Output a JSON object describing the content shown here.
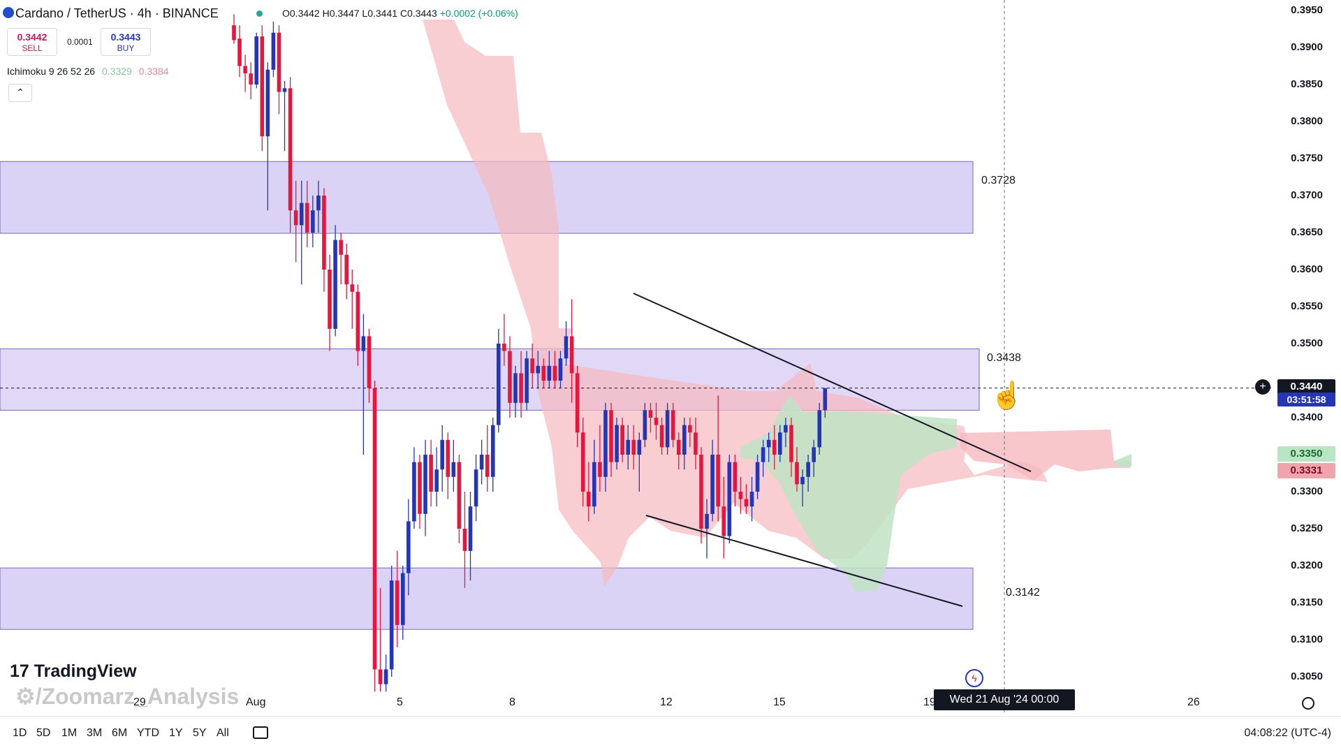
{
  "header": {
    "title": "Cardano / TetherUS · 4h · BINANCE",
    "ohlc": "O0.3442 H0.3447 L0.3441 C0.3443",
    "change": "+0.0002 (+0.06%)"
  },
  "trade": {
    "sell_price": "0.3442",
    "sell_label": "SELL",
    "spread": "0.0001",
    "buy_price": "0.3443",
    "buy_label": "BUY"
  },
  "indicator": {
    "name": "Ichimoku 9 26 52 26",
    "value1": "0.3329",
    "value2": "0.3384",
    "collapse_icon": "chevron-up-icon"
  },
  "colors": {
    "bull": "#2436b5",
    "bear": "#e5173f",
    "zone": "#d5cbf3",
    "cloud_bear": "#f6b9bf",
    "cloud_bull": "#bfe3c4"
  },
  "price_axis": {
    "ticks": [
      "0.3950",
      "0.3900",
      "0.3850",
      "0.3800",
      "0.3750",
      "0.3700",
      "0.3650",
      "0.3600",
      "0.3550",
      "0.3500",
      "0.3400",
      "0.3300",
      "0.3250",
      "0.3200",
      "0.3150",
      "0.3100",
      "0.3050"
    ],
    "current_price": "0.3440",
    "countdown": "03:51:58",
    "senkou_a": "0.3350",
    "senkou_b": "0.3331"
  },
  "zones": {
    "upper_label": "0.3728",
    "middle_label": "0.3438",
    "lower_label": "0.3142"
  },
  "time_axis": {
    "ticks": [
      "29",
      "Aug",
      "5",
      "8",
      "12",
      "15",
      "19",
      "26"
    ],
    "crosshair_label": "Wed 21 Aug '24   00:00"
  },
  "branding": {
    "logo": "TradingView",
    "watermark": "/Zoomarz_Analysis"
  },
  "bottom_bar": {
    "ranges": [
      "1D",
      "5D",
      "1M",
      "3M",
      "6M",
      "YTD",
      "1Y",
      "5Y",
      "All"
    ],
    "clock": "04:08:22 (UTC-4)"
  },
  "chart_data": {
    "type": "candlestick",
    "symbol": "Cardano / TetherUS",
    "interval": "4h",
    "ylim": [
      0.303,
      0.397
    ],
    "candles": [
      [
        0.393,
        0.3945,
        0.3905,
        0.391
      ],
      [
        0.3912,
        0.393,
        0.386,
        0.3875
      ],
      [
        0.3875,
        0.389,
        0.384,
        0.3865
      ],
      [
        0.3865,
        0.388,
        0.383,
        0.385
      ],
      [
        0.385,
        0.392,
        0.3845,
        0.3915
      ],
      [
        0.3915,
        0.393,
        0.376,
        0.378
      ],
      [
        0.378,
        0.388,
        0.368,
        0.387
      ],
      [
        0.387,
        0.3935,
        0.386,
        0.392
      ],
      [
        0.392,
        0.393,
        0.381,
        0.384
      ],
      [
        0.384,
        0.3855,
        0.376,
        0.3845
      ],
      [
        0.3845,
        0.386,
        0.365,
        0.368
      ],
      [
        0.368,
        0.372,
        0.361,
        0.366
      ],
      [
        0.366,
        0.372,
        0.358,
        0.369
      ],
      [
        0.369,
        0.372,
        0.363,
        0.365
      ],
      [
        0.365,
        0.37,
        0.363,
        0.368
      ],
      [
        0.368,
        0.372,
        0.365,
        0.37
      ],
      [
        0.37,
        0.371,
        0.357,
        0.36
      ],
      [
        0.36,
        0.362,
        0.349,
        0.352
      ],
      [
        0.352,
        0.366,
        0.351,
        0.364
      ],
      [
        0.364,
        0.365,
        0.358,
        0.362
      ],
      [
        0.362,
        0.3635,
        0.356,
        0.358
      ],
      [
        0.358,
        0.36,
        0.352,
        0.357
      ],
      [
        0.357,
        0.358,
        0.347,
        0.349
      ],
      [
        0.349,
        0.354,
        0.335,
        0.351
      ],
      [
        0.351,
        0.352,
        0.342,
        0.344
      ],
      [
        0.344,
        0.345,
        0.303,
        0.306
      ],
      [
        0.306,
        0.317,
        0.303,
        0.304
      ],
      [
        0.304,
        0.308,
        0.303,
        0.306
      ],
      [
        0.306,
        0.32,
        0.305,
        0.318
      ],
      [
        0.318,
        0.322,
        0.309,
        0.312
      ],
      [
        0.312,
        0.32,
        0.31,
        0.319
      ],
      [
        0.319,
        0.329,
        0.316,
        0.326
      ],
      [
        0.326,
        0.336,
        0.325,
        0.334
      ],
      [
        0.334,
        0.335,
        0.325,
        0.327
      ],
      [
        0.327,
        0.337,
        0.324,
        0.335
      ],
      [
        0.335,
        0.337,
        0.328,
        0.33
      ],
      [
        0.33,
        0.336,
        0.328,
        0.333
      ],
      [
        0.333,
        0.339,
        0.33,
        0.337
      ],
      [
        0.337,
        0.338,
        0.329,
        0.332
      ],
      [
        0.332,
        0.337,
        0.33,
        0.334
      ],
      [
        0.334,
        0.335,
        0.323,
        0.325
      ],
      [
        0.325,
        0.33,
        0.317,
        0.322
      ],
      [
        0.322,
        0.33,
        0.318,
        0.328
      ],
      [
        0.328,
        0.335,
        0.326,
        0.333
      ],
      [
        0.333,
        0.337,
        0.331,
        0.335
      ],
      [
        0.335,
        0.339,
        0.33,
        0.332
      ],
      [
        0.332,
        0.34,
        0.33,
        0.339
      ],
      [
        0.339,
        0.352,
        0.338,
        0.35
      ],
      [
        0.35,
        0.354,
        0.347,
        0.349
      ],
      [
        0.349,
        0.351,
        0.34,
        0.342
      ],
      [
        0.342,
        0.347,
        0.34,
        0.346
      ],
      [
        0.346,
        0.349,
        0.34,
        0.342
      ],
      [
        0.342,
        0.349,
        0.341,
        0.348
      ],
      [
        0.348,
        0.35,
        0.344,
        0.346
      ],
      [
        0.346,
        0.349,
        0.344,
        0.347
      ],
      [
        0.347,
        0.348,
        0.344,
        0.345
      ],
      [
        0.345,
        0.349,
        0.344,
        0.347
      ],
      [
        0.347,
        0.349,
        0.344,
        0.345
      ],
      [
        0.345,
        0.349,
        0.344,
        0.348
      ],
      [
        0.348,
        0.353,
        0.347,
        0.351
      ],
      [
        0.351,
        0.356,
        0.342,
        0.346
      ],
      [
        0.346,
        0.347,
        0.336,
        0.338
      ],
      [
        0.338,
        0.34,
        0.328,
        0.33
      ],
      [
        0.33,
        0.334,
        0.326,
        0.328
      ],
      [
        0.328,
        0.337,
        0.327,
        0.334
      ],
      [
        0.334,
        0.339,
        0.33,
        0.332
      ],
      [
        0.332,
        0.342,
        0.33,
        0.341
      ],
      [
        0.341,
        0.342,
        0.332,
        0.334
      ],
      [
        0.334,
        0.34,
        0.333,
        0.339
      ],
      [
        0.339,
        0.34,
        0.334,
        0.335
      ],
      [
        0.335,
        0.339,
        0.333,
        0.337
      ],
      [
        0.337,
        0.339,
        0.333,
        0.335
      ],
      [
        0.335,
        0.338,
        0.33,
        0.337
      ],
      [
        0.337,
        0.342,
        0.336,
        0.341
      ],
      [
        0.341,
        0.342,
        0.338,
        0.34
      ],
      [
        0.34,
        0.342,
        0.337,
        0.339
      ],
      [
        0.339,
        0.34,
        0.335,
        0.336
      ],
      [
        0.336,
        0.342,
        0.335,
        0.341
      ],
      [
        0.341,
        0.342,
        0.336,
        0.337
      ],
      [
        0.337,
        0.338,
        0.333,
        0.335
      ],
      [
        0.335,
        0.34,
        0.333,
        0.339
      ],
      [
        0.339,
        0.34,
        0.336,
        0.338
      ],
      [
        0.338,
        0.34,
        0.333,
        0.335
      ],
      [
        0.335,
        0.336,
        0.323,
        0.325
      ],
      [
        0.325,
        0.329,
        0.321,
        0.327
      ],
      [
        0.327,
        0.337,
        0.326,
        0.335
      ],
      [
        0.335,
        0.343,
        0.326,
        0.328
      ],
      [
        0.328,
        0.332,
        0.321,
        0.324
      ],
      [
        0.324,
        0.335,
        0.323,
        0.334
      ],
      [
        0.334,
        0.335,
        0.328,
        0.33
      ],
      [
        0.33,
        0.332,
        0.327,
        0.329
      ],
      [
        0.329,
        0.331,
        0.327,
        0.328
      ],
      [
        0.328,
        0.332,
        0.326,
        0.33
      ],
      [
        0.33,
        0.335,
        0.329,
        0.334
      ],
      [
        0.334,
        0.337,
        0.332,
        0.336
      ],
      [
        0.336,
        0.338,
        0.334,
        0.337
      ],
      [
        0.337,
        0.339,
        0.333,
        0.335
      ],
      [
        0.335,
        0.339,
        0.334,
        0.338
      ],
      [
        0.338,
        0.34,
        0.336,
        0.339
      ],
      [
        0.339,
        0.34,
        0.332,
        0.334
      ],
      [
        0.334,
        0.336,
        0.33,
        0.331
      ],
      [
        0.331,
        0.333,
        0.328,
        0.332
      ],
      [
        0.332,
        0.335,
        0.33,
        0.334
      ],
      [
        0.334,
        0.337,
        0.332,
        0.336
      ],
      [
        0.336,
        0.342,
        0.335,
        0.341
      ],
      [
        0.341,
        0.344,
        0.34,
        0.344
      ]
    ]
  }
}
